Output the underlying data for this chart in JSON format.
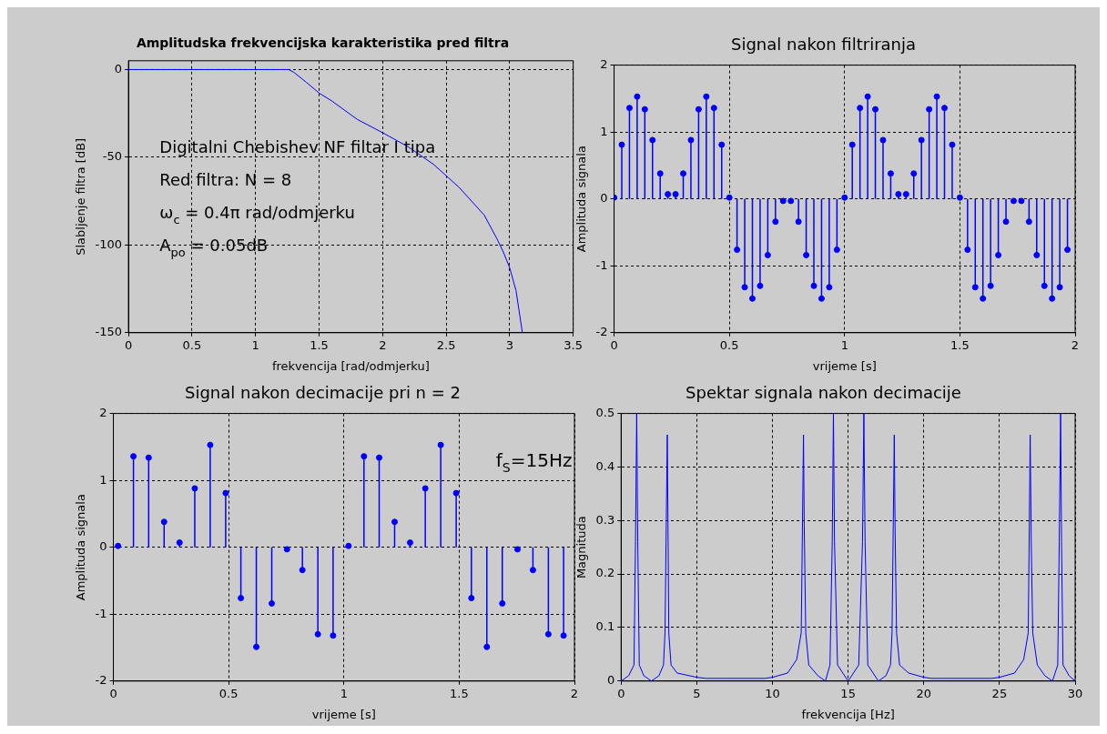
{
  "chart_data": [
    {
      "type": "line",
      "title": "Amplitudska frekvencijska karakteristika pred filtra",
      "xlabel": "frekvencija [rad/odmjerku]",
      "ylabel": "Slabljenje filtra [dB]",
      "color": "#0000ff",
      "x": [
        0,
        0.5,
        1,
        1.26,
        1.3,
        1.4,
        1.5,
        1.6,
        1.8,
        2.0,
        2.2,
        2.4,
        2.6,
        2.8,
        2.9,
        2.95,
        3.0,
        3.05,
        3.1
      ],
      "values": [
        0,
        0,
        0,
        0,
        -1.5,
        -7.3,
        -13.4,
        -17.9,
        -28.4,
        -36,
        -44,
        -54,
        -67,
        -83,
        -96.5,
        -104,
        -113,
        -126,
        -150
      ],
      "xlim": [
        0,
        3.5
      ],
      "ylim": [
        -150,
        5
      ],
      "xticks": [
        0,
        0.5,
        1,
        1.5,
        2,
        2.5,
        3,
        3.5
      ],
      "yticks": [
        -150,
        -100,
        -50,
        0
      ],
      "grid": true,
      "annotations": [
        "Digitalni Chebishev NF filtar I tipa",
        "Red filtra: N = 8",
        "ω$_{c}$ = 0.4π rad/odmjerku",
        "A$_{po}$ = 0.05dB"
      ]
    },
    {
      "type": "lollipop",
      "title": "Signal nakon filtriranja",
      "xlabel": "vrijeme [s]",
      "ylabel": "Amplituda signala",
      "color": "#0000ff",
      "marker": "circle",
      "x": [
        0,
        0.0333,
        0.0667,
        0.1,
        0.1333,
        0.1667,
        0.2,
        0.2333,
        0.2667,
        0.3,
        0.3333,
        0.3667,
        0.4,
        0.4333,
        0.4667,
        0.5,
        0.5333,
        0.5667,
        0.6,
        0.6333,
        0.6667,
        0.7,
        0.7333,
        0.7667,
        0.8,
        0.8333,
        0.8667,
        0.9,
        0.9333,
        0.9667,
        1,
        1.0333,
        1.0667,
        1.1,
        1.1333,
        1.1667,
        1.2,
        1.2333,
        1.2667,
        1.3,
        1.3333,
        1.3667,
        1.4,
        1.4333,
        1.4667,
        1.5,
        1.5333,
        1.5667,
        1.6,
        1.6333,
        1.6667,
        1.7,
        1.7333,
        1.7667,
        1.8,
        1.8333,
        1.8667,
        1.9,
        1.9333,
        1.9667
      ],
      "values": [
        0.02,
        0.81,
        1.36,
        1.53,
        1.34,
        0.88,
        0.38,
        0.07,
        0.07,
        0.38,
        0.88,
        1.34,
        1.53,
        1.36,
        0.81,
        0.02,
        -0.76,
        -1.32,
        -1.49,
        -1.3,
        -0.84,
        -0.34,
        -0.03,
        -0.03,
        -0.34,
        -0.84,
        -1.3,
        -1.49,
        -1.32,
        -0.76,
        0.02,
        0.81,
        1.36,
        1.53,
        1.34,
        0.88,
        0.38,
        0.07,
        0.07,
        0.38,
        0.88,
        1.34,
        1.53,
        1.36,
        0.81,
        0.02,
        -0.76,
        -1.32,
        -1.49,
        -1.3,
        -0.84,
        -0.34,
        -0.03,
        -0.03,
        -0.34,
        -0.84,
        -1.3,
        -1.49,
        -1.32,
        -0.76
      ],
      "xlim": [
        0,
        2
      ],
      "ylim": [
        -2,
        2
      ],
      "xticks": [
        0,
        0.5,
        1,
        1.5,
        2
      ],
      "yticks": [
        -2,
        -1,
        0,
        1,
        2
      ],
      "grid": true
    },
    {
      "type": "lollipop",
      "title": "Signal nakon decimacije pri n = 2",
      "xlabel": "vrijeme [s]",
      "ylabel": "Amplituda signala",
      "color": "#0000ff",
      "marker": "circle",
      "x": [
        0.02,
        0.087,
        0.153,
        0.22,
        0.287,
        0.353,
        0.42,
        0.487,
        0.553,
        0.62,
        0.687,
        0.753,
        0.82,
        0.887,
        0.953,
        1.02,
        1.087,
        1.153,
        1.22,
        1.287,
        1.353,
        1.42,
        1.487,
        1.553,
        1.62,
        1.687,
        1.753,
        1.82,
        1.887,
        1.953
      ],
      "values": [
        0.02,
        1.36,
        1.34,
        0.38,
        0.07,
        0.88,
        1.53,
        0.81,
        -0.76,
        -1.49,
        -0.84,
        -0.03,
        -0.34,
        -1.3,
        -1.32,
        0.02,
        1.36,
        1.34,
        0.38,
        0.07,
        0.88,
        1.53,
        0.81,
        -0.76,
        -1.49,
        -0.84,
        -0.03,
        -0.34,
        -1.3,
        -1.32
      ],
      "xlim": [
        0,
        2
      ],
      "ylim": [
        -2,
        2
      ],
      "xticks": [
        0,
        0.5,
        1,
        1.5,
        2
      ],
      "yticks": [
        -2,
        -1,
        0,
        1,
        2
      ],
      "grid": true,
      "annotations": [
        "f$_{S}$=15Hz"
      ]
    },
    {
      "type": "line",
      "title": "Spektar signala nakon decimacije",
      "xlabel": "frekvencija [Hz]",
      "ylabel": "Magnituda",
      "color": "#0000ff",
      "x": [
        0,
        0.5,
        0.85,
        0.95,
        1.03,
        1.1,
        1.2,
        1.5,
        2.0,
        2.5,
        2.8,
        2.9,
        2.97,
        3.05,
        3.1,
        3.15,
        3.3,
        3.7,
        5,
        5.6,
        9.5,
        10,
        11,
        11.6,
        11.9,
        11.97,
        12.05,
        12.1,
        12.2,
        12.4,
        13,
        13.5,
        13.8,
        13.95,
        14.03,
        14.1,
        14.3,
        15,
        15.7,
        15.95,
        16.04,
        16.12,
        16.3,
        17,
        17.5,
        17.8,
        17.9,
        17.97,
        18.05,
        18.1,
        18.2,
        18.4,
        19,
        20,
        20.5,
        24.5,
        25,
        26,
        26.6,
        26.9,
        26.97,
        27.03,
        27.1,
        27.2,
        27.5,
        28,
        28.5,
        28.85,
        28.95,
        29.04,
        29.1,
        29.2,
        29.6,
        30
      ],
      "values": [
        0,
        0.01,
        0.03,
        0.26,
        0.5,
        0.26,
        0.03,
        0.01,
        0,
        0.01,
        0.03,
        0.09,
        0.26,
        0.46,
        0.29,
        0.09,
        0.03,
        0.015,
        0.007,
        0.005,
        0.005,
        0.007,
        0.015,
        0.04,
        0.09,
        0.26,
        0.46,
        0.29,
        0.09,
        0.03,
        0.01,
        0,
        0.03,
        0.26,
        0.5,
        0.26,
        0.03,
        0,
        0.03,
        0.26,
        0.5,
        0.26,
        0.03,
        0,
        0.01,
        0.03,
        0.09,
        0.26,
        0.46,
        0.29,
        0.09,
        0.03,
        0.015,
        0.007,
        0.005,
        0.005,
        0.007,
        0.015,
        0.04,
        0.09,
        0.29,
        0.46,
        0.26,
        0.09,
        0.03,
        0.01,
        0,
        0.03,
        0.26,
        0.5,
        0.26,
        0.03,
        0.01,
        0
      ],
      "xlim": [
        0,
        30
      ],
      "ylim": [
        0,
        0.5
      ],
      "xticks": [
        0,
        5,
        10,
        15,
        20,
        25,
        30
      ],
      "yticks": [
        0,
        0.1,
        0.2,
        0.3,
        0.4,
        0.5
      ],
      "grid": true
    }
  ]
}
